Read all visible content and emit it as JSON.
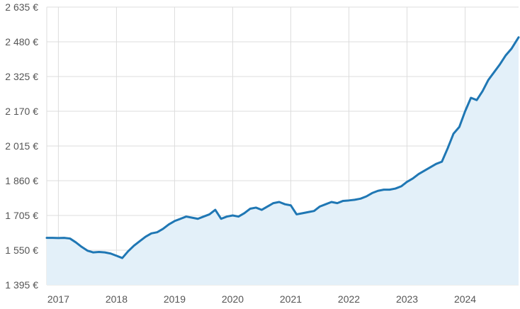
{
  "chart_data": {
    "type": "area",
    "title": "",
    "xlabel": "",
    "ylabel": "",
    "y_ticks": [
      {
        "value": 1395,
        "label": "1 395 €"
      },
      {
        "value": 1550,
        "label": "1 550 €"
      },
      {
        "value": 1705,
        "label": "1 705 €"
      },
      {
        "value": 1860,
        "label": "1 860 €"
      },
      {
        "value": 2015,
        "label": "2 015 €"
      },
      {
        "value": 2170,
        "label": "2 170 €"
      },
      {
        "value": 2325,
        "label": "2 325 €"
      },
      {
        "value": 2480,
        "label": "2 480 €"
      },
      {
        "value": 2635,
        "label": "2 635 €"
      }
    ],
    "x_ticks": [
      {
        "value": 2017,
        "label": "2017"
      },
      {
        "value": 2018,
        "label": "2018"
      },
      {
        "value": 2019,
        "label": "2019"
      },
      {
        "value": 2020,
        "label": "2020"
      },
      {
        "value": 2021,
        "label": "2021"
      },
      {
        "value": 2022,
        "label": "2022"
      },
      {
        "value": 2023,
        "label": "2023"
      },
      {
        "value": 2024,
        "label": "2024"
      }
    ],
    "xlim": [
      2016.8,
      2024.92
    ],
    "ylim": [
      1395,
      2635
    ],
    "grid": true,
    "colors": {
      "line": "#1f77b4",
      "fill": "#e3f0f9",
      "grid": "#dddddd"
    },
    "series": [
      {
        "x": [
          2016.8,
          2016.9,
          2017.0,
          2017.1,
          2017.2,
          2017.3,
          2017.4,
          2017.5,
          2017.6,
          2017.7,
          2017.8,
          2017.9,
          2018.0,
          2018.1,
          2018.2,
          2018.3,
          2018.4,
          2018.5,
          2018.6,
          2018.7,
          2018.8,
          2018.9,
          2019.0,
          2019.1,
          2019.2,
          2019.3,
          2019.4,
          2019.5,
          2019.6,
          2019.7,
          2019.8,
          2019.9,
          2020.0,
          2020.1,
          2020.2,
          2020.3,
          2020.4,
          2020.5,
          2020.6,
          2020.7,
          2020.8,
          2020.9,
          2021.0,
          2021.1,
          2021.2,
          2021.3,
          2021.4,
          2021.5,
          2021.6,
          2021.7,
          2021.8,
          2021.9,
          2022.0,
          2022.1,
          2022.2,
          2022.3,
          2022.4,
          2022.5,
          2022.6,
          2022.7,
          2022.8,
          2022.9,
          2023.0,
          2023.1,
          2023.2,
          2023.3,
          2023.4,
          2023.5,
          2023.6,
          2023.7,
          2023.8,
          2023.9,
          2024.0,
          2024.1,
          2024.2,
          2024.3,
          2024.4,
          2024.5,
          2024.6,
          2024.7,
          2024.8,
          2024.92
        ],
        "values": [
          1605,
          1605,
          1604,
          1605,
          1602,
          1585,
          1565,
          1548,
          1540,
          1542,
          1540,
          1535,
          1525,
          1515,
          1545,
          1570,
          1590,
          1610,
          1625,
          1630,
          1645,
          1665,
          1680,
          1690,
          1700,
          1695,
          1690,
          1700,
          1710,
          1730,
          1690,
          1700,
          1705,
          1700,
          1715,
          1735,
          1740,
          1730,
          1745,
          1760,
          1765,
          1755,
          1750,
          1710,
          1715,
          1720,
          1725,
          1745,
          1755,
          1765,
          1760,
          1770,
          1772,
          1775,
          1780,
          1790,
          1805,
          1815,
          1820,
          1820,
          1825,
          1835,
          1855,
          1870,
          1890,
          1905,
          1920,
          1935,
          1945,
          2005,
          2070,
          2100,
          2170,
          2230,
          2220,
          2260,
          2310,
          2345,
          2380,
          2420,
          2450,
          2500
        ]
      }
    ]
  }
}
